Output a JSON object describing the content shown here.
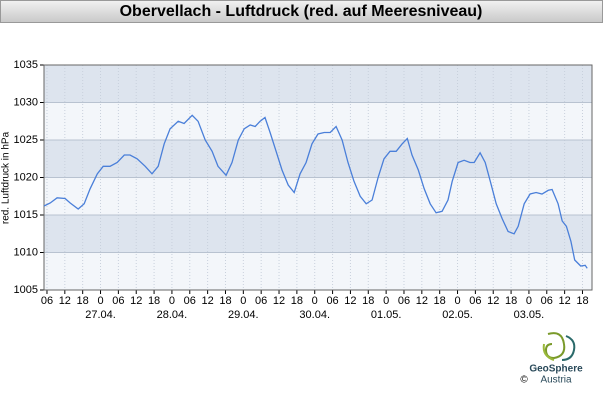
{
  "chart_data": {
    "type": "line",
    "title": "Obervellach - Luftdruck (red. auf Meeresniveau)",
    "y_label": "red. Luftdruck in hPa",
    "logo": {
      "name": "GeoSphere",
      "sub": "Austria",
      "copyright": "©"
    },
    "color": "#4a7fd9",
    "grid": true,
    "ylim": [
      1005,
      1035
    ],
    "yticks": [
      1005,
      1010,
      1015,
      1020,
      1025,
      1030,
      1035
    ],
    "xlim": [
      5,
      189.2
    ],
    "xticks": [
      {
        "value": 6,
        "label": "06"
      },
      {
        "value": 12,
        "label": "12"
      },
      {
        "value": 18,
        "label": "18"
      },
      {
        "value": 24,
        "label": "0"
      },
      {
        "value": 30,
        "label": "06"
      },
      {
        "value": 36,
        "label": "12"
      },
      {
        "value": 42,
        "label": "18"
      },
      {
        "value": 48,
        "label": "0"
      },
      {
        "value": 54,
        "label": "06"
      },
      {
        "value": 60,
        "label": "12"
      },
      {
        "value": 66,
        "label": "18"
      },
      {
        "value": 72,
        "label": "0"
      },
      {
        "value": 78,
        "label": "06"
      },
      {
        "value": 84,
        "label": "12"
      },
      {
        "value": 90,
        "label": "18"
      },
      {
        "value": 96,
        "label": "0"
      },
      {
        "value": 102,
        "label": "06"
      },
      {
        "value": 108,
        "label": "12"
      },
      {
        "value": 114,
        "label": "18"
      },
      {
        "value": 120,
        "label": "0"
      },
      {
        "value": 126,
        "label": "06"
      },
      {
        "value": 132,
        "label": "12"
      },
      {
        "value": 138,
        "label": "18"
      },
      {
        "value": 144,
        "label": "0"
      },
      {
        "value": 150,
        "label": "06"
      },
      {
        "value": 156,
        "label": "12"
      },
      {
        "value": 162,
        "label": "18"
      },
      {
        "value": 168,
        "label": "0"
      },
      {
        "value": 174,
        "label": "06"
      },
      {
        "value": 180,
        "label": "12"
      },
      {
        "value": 186,
        "label": "18"
      }
    ],
    "date_labels": [
      {
        "value": 24,
        "label": "27.04."
      },
      {
        "value": 48,
        "label": "28.04."
      },
      {
        "value": 72,
        "label": "29.04."
      },
      {
        "value": 96,
        "label": "30.04."
      },
      {
        "value": 120,
        "label": "01.05."
      },
      {
        "value": 144,
        "label": "02.05."
      },
      {
        "value": 168,
        "label": "03.05."
      }
    ],
    "x": [
      5.0,
      7.1,
      9.4,
      12.1,
      13.8,
      16.5,
      18.5,
      20.5,
      22.9,
      24.9,
      27.2,
      29.6,
      32.0,
      33.9,
      36.3,
      39.0,
      41.3,
      43.4,
      45.4,
      47.4,
      50.1,
      52.1,
      54.8,
      56.8,
      59.2,
      61.5,
      63.5,
      66.2,
      68.2,
      70.3,
      72.3,
      74.3,
      76.0,
      77.6,
      79.3,
      81.0,
      83.0,
      85.0,
      87.1,
      89.1,
      91.1,
      93.1,
      95.1,
      97.1,
      99.2,
      101.2,
      103.2,
      105.2,
      107.2,
      109.2,
      111.3,
      113.3,
      115.3,
      117.3,
      119.3,
      121.3,
      123.4,
      125.4,
      127.1,
      128.7,
      130.8,
      132.8,
      134.8,
      136.8,
      138.8,
      140.8,
      142.2,
      144.2,
      146.2,
      148.2,
      149.6,
      151.6,
      153.3,
      155.0,
      157.0,
      159.0,
      161.0,
      163.0,
      164.4,
      166.4,
      168.4,
      170.4,
      172.4,
      174.5,
      175.8,
      177.8,
      179.2,
      180.6,
      182.1,
      183.4,
      185.4,
      186.9,
      187.6
    ],
    "values": [
      1016.2,
      1016.6,
      1017.3,
      1017.2,
      1016.6,
      1015.8,
      1016.5,
      1018.5,
      1020.5,
      1021.5,
      1021.5,
      1022,
      1023,
      1023,
      1022.5,
      1021.5,
      1020.5,
      1021.5,
      1024.5,
      1026.5,
      1027.5,
      1027.2,
      1028.3,
      1027.5,
      1025,
      1023.5,
      1021.5,
      1020.3,
      1022,
      1025,
      1026.5,
      1027,
      1026.8,
      1027.5,
      1028,
      1026,
      1023.5,
      1021,
      1019,
      1018,
      1020.5,
      1022,
      1024.5,
      1025.8,
      1026,
      1026,
      1026.8,
      1025,
      1022,
      1019.5,
      1017.5,
      1016.5,
      1017,
      1020,
      1022.5,
      1023.5,
      1023.5,
      1024.5,
      1025.2,
      1023,
      1021,
      1018.5,
      1016.5,
      1015.3,
      1015.5,
      1017,
      1019.5,
      1022,
      1022.3,
      1022,
      1022,
      1023.3,
      1022,
      1019.5,
      1016.5,
      1014.5,
      1012.8,
      1012.5,
      1013.5,
      1016.5,
      1017.8,
      1018,
      1017.8,
      1018.3,
      1018.4,
      1016.5,
      1014.2,
      1013.5,
      1011.5,
      1009,
      1008.2,
      1008.3,
      1007.9
    ]
  }
}
